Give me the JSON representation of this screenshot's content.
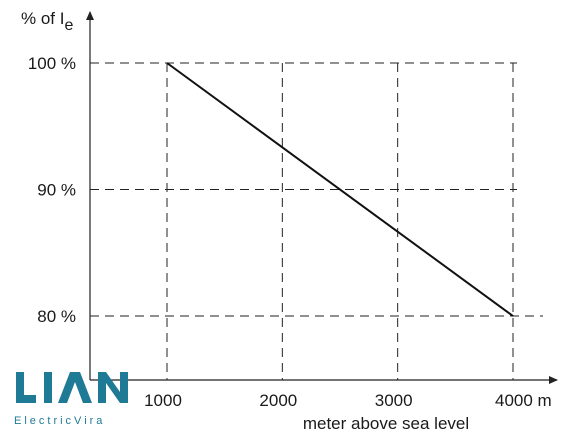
{
  "chart_data": {
    "type": "line",
    "title": "",
    "ylabel_prefix": "% of I",
    "ylabel_subscript": "e",
    "xlabel": "meter above sea level",
    "xlim": [
      0,
      4350
    ],
    "ylim": [
      70,
      104
    ],
    "x_ticks": [
      {
        "value": 1000,
        "label": "1000"
      },
      {
        "value": 2000,
        "label": "2000"
      },
      {
        "value": 3000,
        "label": "3000"
      },
      {
        "value": 4000,
        "label": "4000 m"
      }
    ],
    "y_ticks": [
      {
        "value": 100,
        "label": "100 %"
      },
      {
        "value": 90,
        "label": "90 %"
      },
      {
        "value": 80,
        "label": "80 %"
      }
    ],
    "grid": true,
    "series": [
      {
        "x": [
          1000,
          4000
        ],
        "y": [
          100,
          80
        ]
      }
    ]
  },
  "watermark": {
    "brand": "LIAN",
    "sub": "ElectricVira",
    "color": "#1f7a96"
  }
}
